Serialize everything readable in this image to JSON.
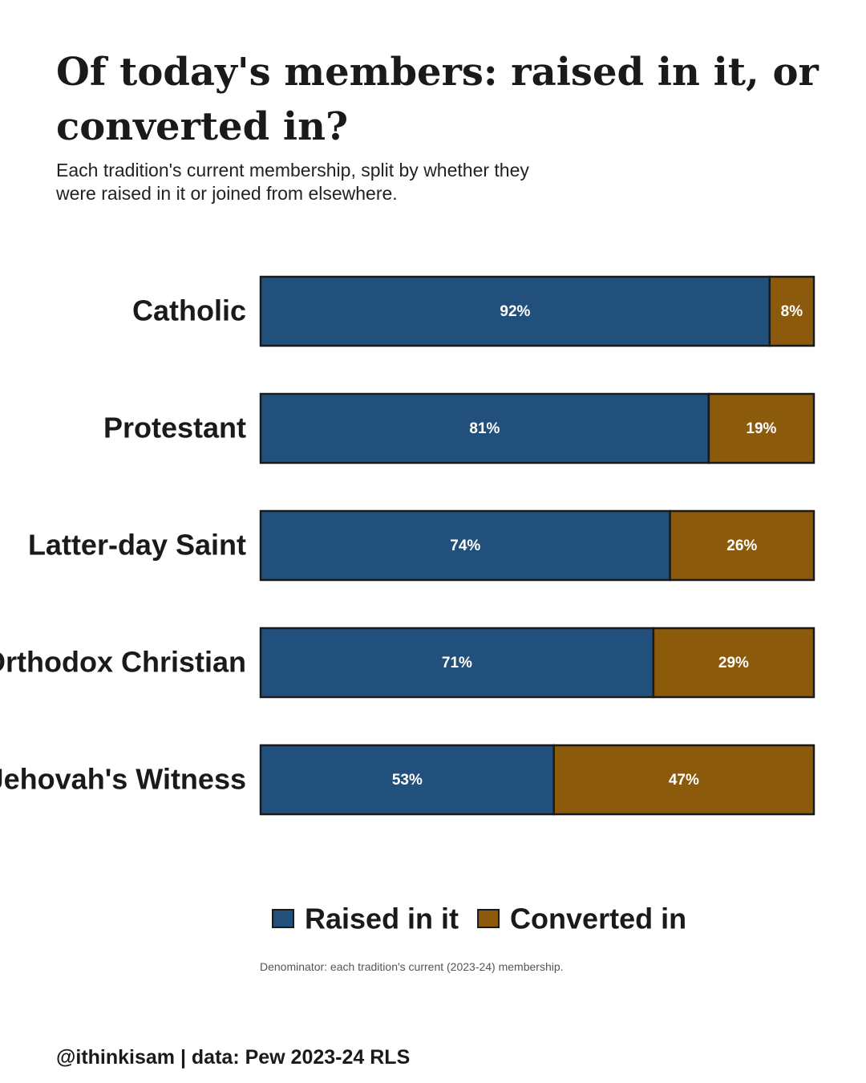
{
  "title": "Of today's members: raised in it, or converted in?",
  "subtitle": "Each tradition's current membership, split by whether they were raised in it or joined from elsewhere.",
  "note": "Denominator: each tradition's current (2023-24) membership.",
  "footer": "@ithinkisam | data: Pew 2023-24 RLS",
  "chart_data": {
    "type": "bar",
    "orientation": "horizontal",
    "stacked": true,
    "categories": [
      "Catholic",
      "Protestant",
      "Latter-day Saint",
      "Orthodox Christian",
      "Jehovah's Witness"
    ],
    "series": [
      {
        "name": "Raised in it",
        "values": [
          92,
          81,
          74,
          71,
          53
        ],
        "labels": [
          "92%",
          "81%",
          "74%",
          "71%",
          "53%"
        ],
        "color": "#22507c"
      },
      {
        "name": "Converted in",
        "values": [
          8,
          19,
          26,
          29,
          47
        ],
        "labels": [
          "8%",
          "19%",
          "26%",
          "29%",
          "47%"
        ],
        "color": "#8b5a0a"
      }
    ],
    "xlim": [
      0,
      100
    ],
    "grid": false,
    "legend_position": "bottom"
  }
}
